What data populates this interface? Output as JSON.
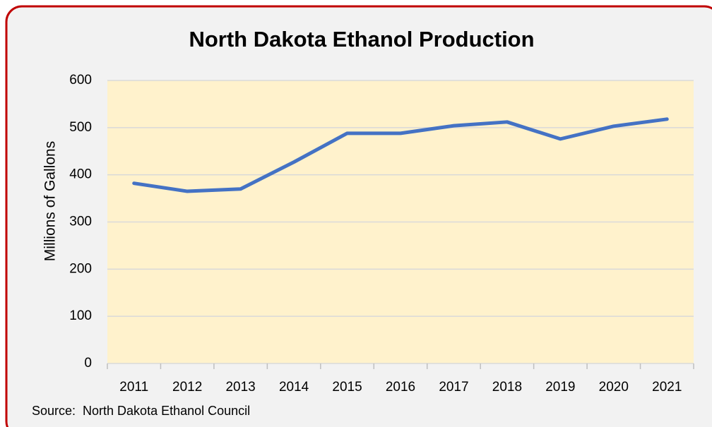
{
  "chart_data": {
    "type": "line",
    "title": "North Dakota Ethanol Production",
    "y_label": "Millions of Gallons",
    "source": "Source:  North Dakota Ethanol Council",
    "categories": [
      "2011",
      "2012",
      "2013",
      "2014",
      "2015",
      "2016",
      "2017",
      "2018",
      "2019",
      "2020",
      "2021"
    ],
    "series": [
      {
        "name": "North Dakota Ethanol Production",
        "color": "#4472c4",
        "values": [
          382,
          365,
          370,
          427,
          488,
          488,
          504,
          512,
          476,
          503,
          518
        ]
      }
    ],
    "ylim": [
      0,
      600
    ],
    "yticks": [
      0,
      100,
      200,
      300,
      400,
      500,
      600
    ],
    "grid": true
  }
}
